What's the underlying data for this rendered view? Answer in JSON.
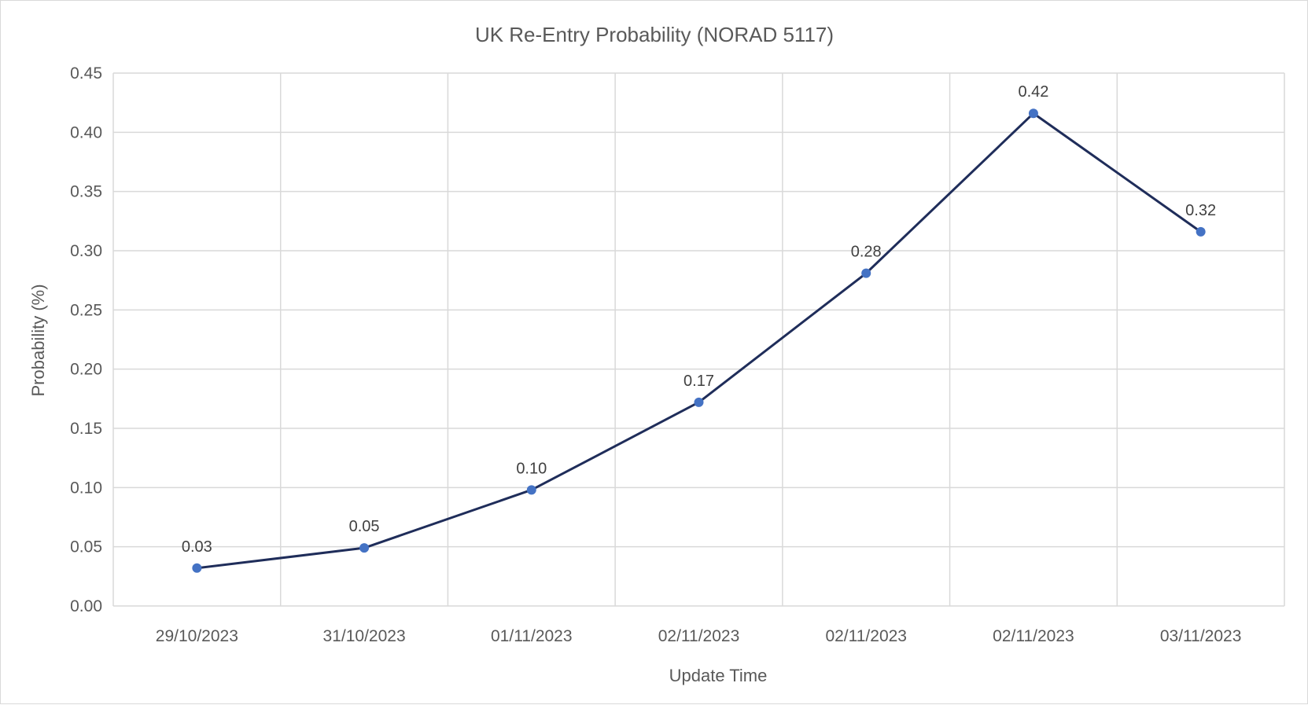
{
  "chart_data": {
    "type": "line",
    "title": "UK Re-Entry Probability (NORAD 5117)",
    "xlabel": "Update Time",
    "ylabel": "Probability (%)",
    "categories": [
      "29/10/2023",
      "31/10/2023",
      "01/11/2023",
      "02/11/2023",
      "02/11/2023",
      "02/11/2023",
      "03/11/2023"
    ],
    "series": [
      {
        "values": [
          0.032,
          0.049,
          0.098,
          0.172,
          0.281,
          0.416,
          0.316
        ],
        "labels": [
          "0.03",
          "0.05",
          "0.10",
          "0.17",
          "0.28",
          "0.42",
          "0.32"
        ]
      }
    ],
    "ylim": [
      0,
      0.45
    ],
    "yticks": [
      0,
      0.05,
      0.1,
      0.15,
      0.2,
      0.25,
      0.3,
      0.35,
      0.4,
      0.45
    ],
    "ytick_labels": [
      "0.00",
      "0.05",
      "0.10",
      "0.15",
      "0.20",
      "0.25",
      "0.30",
      "0.35",
      "0.40",
      "0.45"
    ],
    "grid": true,
    "legend": "none",
    "colors": {
      "line": "#1f2d5a",
      "marker": "#4472c4",
      "grid": "#d9d9d9",
      "text": "#595959"
    }
  }
}
